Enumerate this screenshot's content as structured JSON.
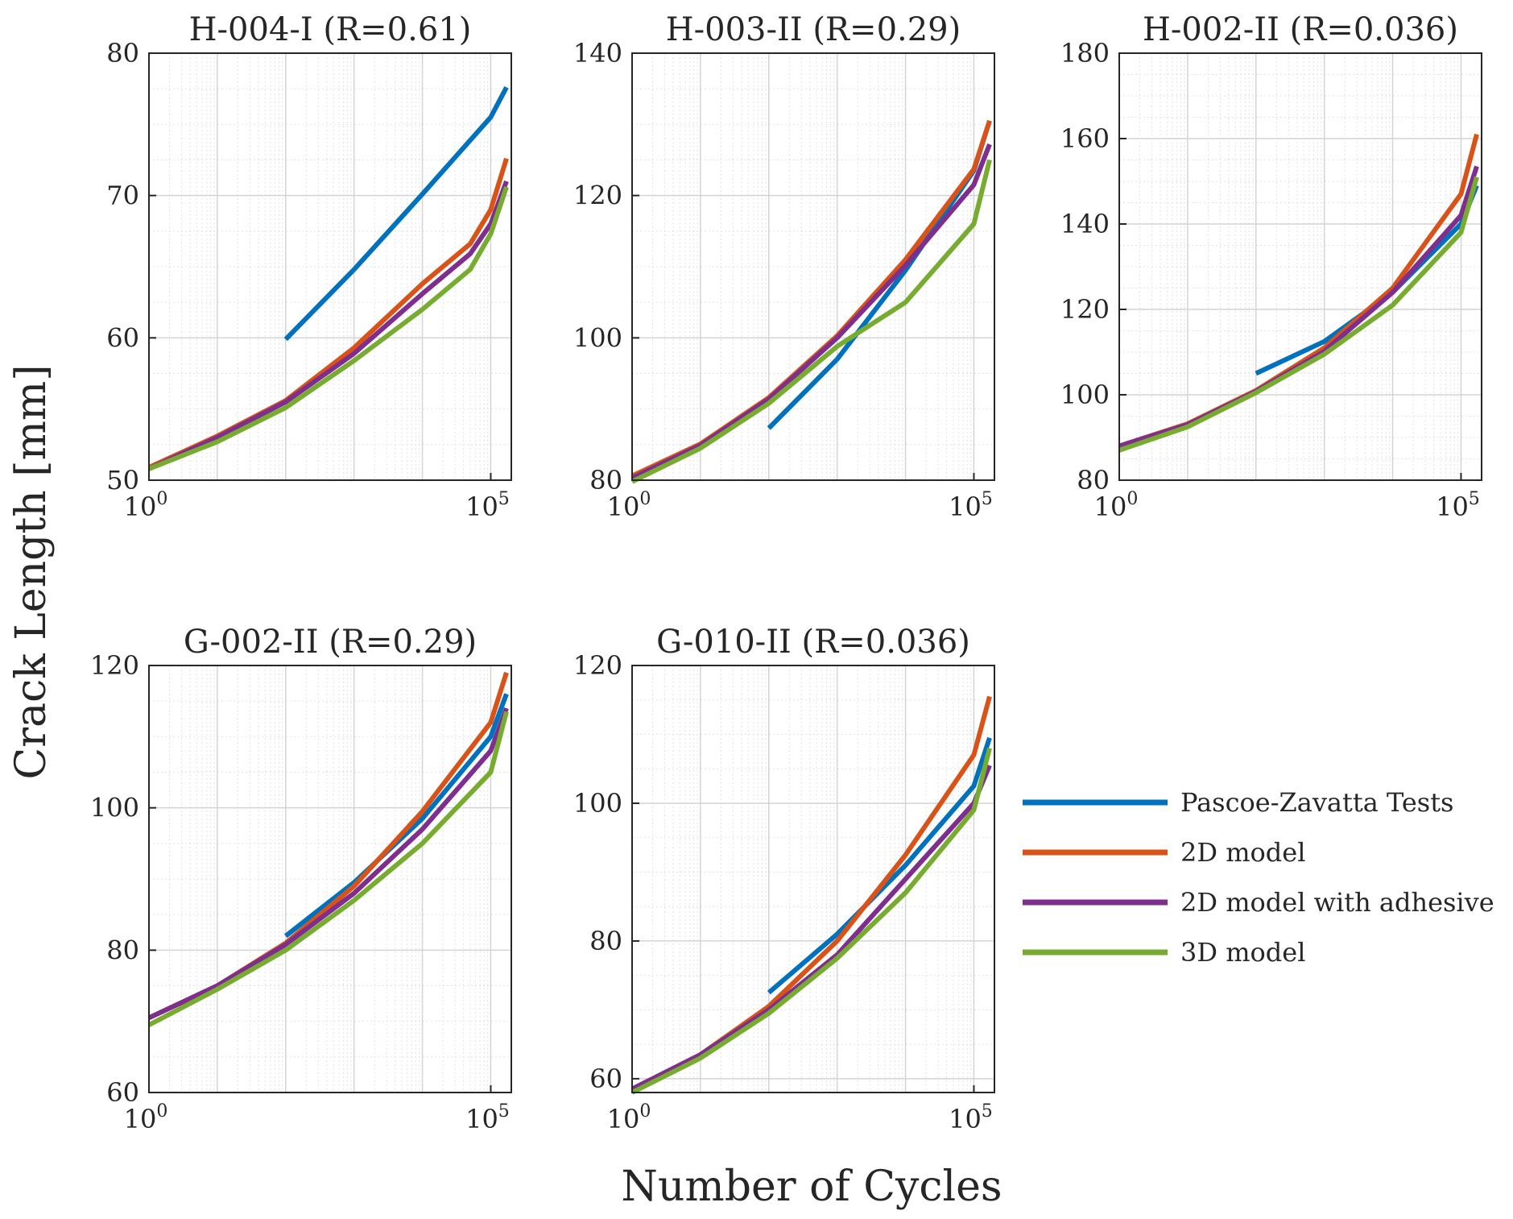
{
  "figure": {
    "xlabel": "Number of Cycles",
    "ylabel": "Crack Length [mm]"
  },
  "legend": [
    {
      "label": "Pascoe-Zavatta Tests",
      "color": "#0072BD"
    },
    {
      "label": "2D model",
      "color": "#D95319"
    },
    {
      "label": "2D model with adhesive",
      "color": "#7E2F8E"
    },
    {
      "label": "3D model",
      "color": "#77AC30"
    }
  ],
  "chart_data": [
    {
      "type": "line",
      "title": "H-004-I (R=0.61)",
      "xscale": "log",
      "xlim": [
        1,
        200000
      ],
      "ylim": [
        50,
        80
      ],
      "xticks": [
        {
          "base": "10",
          "exp": "0"
        },
        {
          "base": "10",
          "exp": "5"
        }
      ],
      "yticks": [
        "50",
        "60",
        "70",
        "80"
      ],
      "grid": true,
      "series": [
        {
          "name": "Pascoe-Zavatta Tests",
          "color": "#0072BD",
          "x": [
            100,
            1000,
            10000,
            100000,
            170000
          ],
          "y": [
            59.9,
            64.8,
            70.1,
            75.5,
            77.6
          ]
        },
        {
          "name": "2D model",
          "color": "#D95319",
          "x": [
            1,
            10,
            100,
            1000,
            10000,
            50000,
            100000,
            170000
          ],
          "y": [
            50.9,
            53.1,
            55.6,
            59.3,
            63.8,
            66.6,
            69.0,
            72.6
          ]
        },
        {
          "name": "2D model with adhesive",
          "color": "#7E2F8E",
          "x": [
            1,
            10,
            100,
            1000,
            10000,
            50000,
            100000,
            170000
          ],
          "y": [
            50.8,
            53.0,
            55.5,
            58.9,
            63.1,
            65.9,
            68.0,
            71.0
          ]
        },
        {
          "name": "3D model",
          "color": "#77AC30",
          "x": [
            1,
            10,
            100,
            1000,
            10000,
            50000,
            100000,
            170000
          ],
          "y": [
            50.8,
            52.7,
            55.1,
            58.4,
            62.0,
            64.8,
            67.3,
            70.6
          ]
        }
      ]
    },
    {
      "type": "line",
      "title": "H-003-II (R=0.29)",
      "xscale": "log",
      "xlim": [
        1,
        200000
      ],
      "ylim": [
        80,
        140
      ],
      "xticks": [
        {
          "base": "10",
          "exp": "0"
        },
        {
          "base": "10",
          "exp": "5"
        }
      ],
      "yticks": [
        "80",
        "100",
        "120",
        "140"
      ],
      "grid": true,
      "series": [
        {
          "name": "Pascoe-Zavatta Tests",
          "color": "#0072BD",
          "x": [
            100,
            1000,
            10000,
            100000,
            170000
          ],
          "y": [
            87.3,
            97.0,
            109.5,
            123.5,
            130.5
          ]
        },
        {
          "name": "2D model",
          "color": "#D95319",
          "x": [
            1,
            10,
            100,
            1000,
            10000,
            100000,
            170000
          ],
          "y": [
            80.6,
            85.1,
            91.6,
            100.3,
            111.0,
            123.7,
            130.5
          ]
        },
        {
          "name": "2D model with adhesive",
          "color": "#7E2F8E",
          "x": [
            1,
            10,
            100,
            1000,
            10000,
            100000,
            170000
          ],
          "y": [
            80.3,
            84.9,
            91.4,
            100.0,
            110.2,
            121.5,
            127.2
          ]
        },
        {
          "name": "3D model",
          "color": "#77AC30",
          "x": [
            1,
            10,
            100,
            1000,
            10000,
            100000,
            170000
          ],
          "y": [
            79.8,
            84.5,
            90.8,
            98.8,
            105.0,
            116.0,
            125.0
          ]
        }
      ]
    },
    {
      "type": "line",
      "title": "H-002-II (R=0.036)",
      "xscale": "log",
      "xlim": [
        1,
        200000
      ],
      "ylim": [
        80,
        180
      ],
      "xticks": [
        {
          "base": "10",
          "exp": "0"
        },
        {
          "base": "10",
          "exp": "5"
        }
      ],
      "yticks": [
        "80",
        "100",
        "120",
        "140",
        "160",
        "180"
      ],
      "grid": true,
      "series": [
        {
          "name": "Pascoe-Zavatta Tests",
          "color": "#0072BD",
          "x": [
            100,
            1000,
            10000,
            100000,
            170000
          ],
          "y": [
            105.0,
            112.5,
            124.0,
            140.0,
            149.0
          ]
        },
        {
          "name": "2D model",
          "color": "#D95319",
          "x": [
            1,
            10,
            100,
            1000,
            10000,
            100000,
            170000
          ],
          "y": [
            88.0,
            93.2,
            101.0,
            111.0,
            125.0,
            147.0,
            161.0
          ]
        },
        {
          "name": "2D model with adhesive",
          "color": "#7E2F8E",
          "x": [
            1,
            10,
            100,
            1000,
            10000,
            100000,
            170000
          ],
          "y": [
            88.0,
            93.0,
            100.8,
            110.2,
            124.0,
            142.0,
            153.5
          ]
        },
        {
          "name": "3D model",
          "color": "#77AC30",
          "x": [
            1,
            10,
            100,
            1000,
            10000,
            100000,
            170000
          ],
          "y": [
            87.0,
            92.5,
            100.5,
            109.5,
            121.0,
            138.0,
            151.0
          ]
        }
      ]
    },
    {
      "type": "line",
      "title": "G-002-II (R=0.29)",
      "xscale": "log",
      "xlim": [
        1,
        200000
      ],
      "ylim": [
        60,
        120
      ],
      "xticks": [
        {
          "base": "10",
          "exp": "0"
        },
        {
          "base": "10",
          "exp": "5"
        }
      ],
      "yticks": [
        "60",
        "80",
        "100",
        "120"
      ],
      "grid": true,
      "series": [
        {
          "name": "Pascoe-Zavatta Tests",
          "color": "#0072BD",
          "x": [
            100,
            1000,
            10000,
            100000,
            170000
          ],
          "y": [
            82.0,
            89.5,
            98.5,
            110.0,
            116.0
          ]
        },
        {
          "name": "2D model",
          "color": "#D95319",
          "x": [
            1,
            10,
            100,
            1000,
            10000,
            100000,
            170000
          ],
          "y": [
            70.5,
            75.0,
            81.0,
            89.0,
            99.5,
            112.0,
            119.0
          ]
        },
        {
          "name": "2D model with adhesive",
          "color": "#7E2F8E",
          "x": [
            1,
            10,
            100,
            1000,
            10000,
            100000,
            170000
          ],
          "y": [
            70.5,
            75.0,
            80.8,
            88.0,
            97.0,
            108.0,
            114.0
          ]
        },
        {
          "name": "3D model",
          "color": "#77AC30",
          "x": [
            1,
            10,
            100,
            1000,
            10000,
            100000,
            170000
          ],
          "y": [
            69.5,
            74.5,
            80.0,
            87.0,
            95.0,
            105.0,
            113.5
          ]
        }
      ]
    },
    {
      "type": "line",
      "title": "G-010-II (R=0.036)",
      "xscale": "log",
      "xlim": [
        1,
        200000
      ],
      "ylim": [
        58,
        120
      ],
      "xticks": [
        {
          "base": "10",
          "exp": "0"
        },
        {
          "base": "10",
          "exp": "5"
        }
      ],
      "yticks": [
        "60",
        "80",
        "100",
        "120"
      ],
      "grid": true,
      "series": [
        {
          "name": "Pascoe-Zavatta Tests",
          "color": "#0072BD",
          "x": [
            100,
            1000,
            10000,
            100000,
            170000
          ],
          "y": [
            72.5,
            81.0,
            91.0,
            102.5,
            109.5
          ]
        },
        {
          "name": "2D model",
          "color": "#D95319",
          "x": [
            1,
            10,
            100,
            1000,
            10000,
            100000,
            170000
          ],
          "y": [
            58.5,
            63.5,
            70.5,
            80.0,
            92.5,
            107.0,
            115.5
          ]
        },
        {
          "name": "2D model with adhesive",
          "color": "#7E2F8E",
          "x": [
            1,
            10,
            100,
            1000,
            10000,
            100000,
            170000
          ],
          "y": [
            58.5,
            63.5,
            70.0,
            78.0,
            89.0,
            100.0,
            105.5
          ]
        },
        {
          "name": "3D model",
          "color": "#77AC30",
          "x": [
            1,
            10,
            100,
            1000,
            10000,
            100000,
            170000
          ],
          "y": [
            58.0,
            63.0,
            69.5,
            77.5,
            87.0,
            99.0,
            108.0
          ]
        }
      ]
    }
  ]
}
